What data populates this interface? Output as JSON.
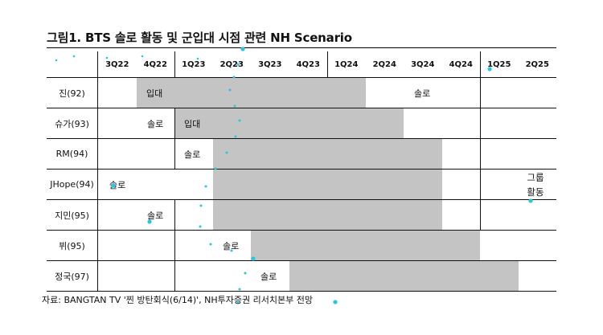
{
  "title": "그림1. BTS 솔로 활동 및 군입대 시점 관련 NH Scenario",
  "columns": [
    "3Q22",
    "4Q22",
    "1Q23",
    "2Q23",
    "3Q23",
    "4Q23",
    "1Q24",
    "2Q24",
    "3Q24",
    "4Q24",
    "1Q25",
    "2Q25"
  ],
  "rows": [
    {
      "member": "진(92)",
      "label_a": "입대",
      "label_b": "솔로"
    },
    {
      "member": "슈가(93)",
      "label_a": "솔로",
      "label_b": "입대"
    },
    {
      "member": "RM(94)",
      "label_a": "솔로"
    },
    {
      "member": "JHope(94)",
      "label_a": "솔로"
    },
    {
      "member": "지민(95)",
      "label_a": "솔로"
    },
    {
      "member": "뷔(95)",
      "label_a": "솔로"
    },
    {
      "member": "정국(97)",
      "label_a": "솔로"
    }
  ],
  "group_note": [
    "그룹",
    "활동"
  ],
  "source": "자료: BANGTAN TV '찐 방탄회식(6/14)', NH투자증권 리서치본부 전망",
  "colors": {
    "shade": "#c4c4c4",
    "line": "#111111",
    "marker": "#29c6e0"
  }
}
